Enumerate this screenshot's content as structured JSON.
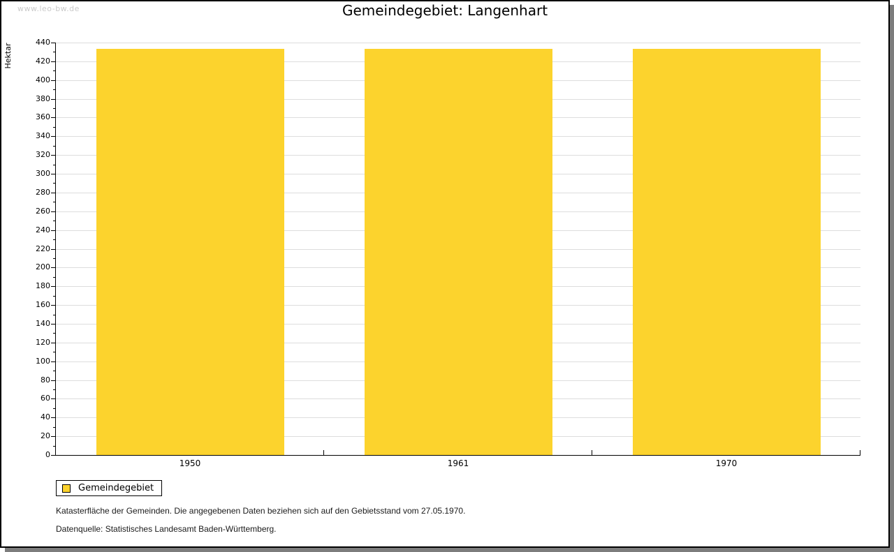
{
  "page": {
    "watermark": "www.leo-bw.de"
  },
  "chart_data": {
    "type": "bar",
    "title": "Gemeindegebiet: Langenhart",
    "ylabel": "Hektar",
    "xlabel": "",
    "categories": [
      "1950",
      "1961",
      "1970"
    ],
    "series": [
      {
        "name": "Gemeindegebiet",
        "values": [
          433,
          433,
          433
        ]
      }
    ],
    "ylim": [
      0,
      440
    ],
    "ytick_step": 20,
    "yminor_step": 10,
    "grid": true,
    "legend_position": "bottom-left",
    "bar_color": "#FCD32D"
  },
  "colors": {
    "bar": "#FCD32D",
    "grid": "#dddddd",
    "axis": "#000000",
    "shadow": "#7d7d7d",
    "watermark": "#cacaca"
  },
  "notes": {
    "line1": "Katasterfläche der Gemeinden. Die angegebenen Daten beziehen sich auf den Gebietsstand vom 27.05.1970.",
    "line2": "Datenquelle: Statistisches Landesamt Baden-Württemberg."
  }
}
